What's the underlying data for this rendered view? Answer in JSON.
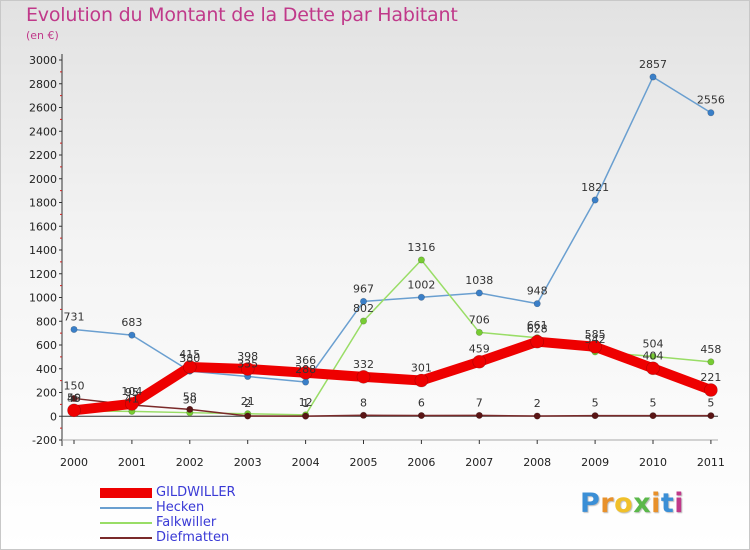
{
  "header": {
    "title": "Evolution du Montant de la Dette par Habitant",
    "subtitle": "(en €)"
  },
  "logo": {
    "letters": [
      "P",
      "r",
      "o",
      "x",
      "i",
      "t",
      "i"
    ],
    "colors": [
      "#3b8fd6",
      "#e8912b",
      "#f0c02a",
      "#5bb84a",
      "#e8912b",
      "#3b8fd6",
      "#c0398a"
    ]
  },
  "chart_data": {
    "type": "line",
    "x": [
      "2000",
      "2001",
      "2002",
      "2003",
      "2004",
      "2005",
      "2006",
      "2007",
      "2008",
      "2009",
      "2010",
      "2011"
    ],
    "ylim": [
      -200,
      3000
    ],
    "yticks": [
      "-200",
      "0",
      "200",
      "400",
      "600",
      "800",
      "1000",
      "1200",
      "1400",
      "1600",
      "1800",
      "2000",
      "2200",
      "2400",
      "2600",
      "2800",
      "3000"
    ],
    "grid": false,
    "legend_position": "bottom-left",
    "series": [
      {
        "name": "GILDWILLER",
        "color": "#ee0000",
        "width": 10,
        "values": [
          50,
          104,
          415,
          398,
          366,
          332,
          301,
          459,
          628,
          585,
          404,
          221
        ],
        "labels": [
          "50",
          "104",
          "415",
          "398",
          "366",
          "332",
          "301",
          "459",
          "628",
          "585",
          "404",
          "221"
        ]
      },
      {
        "name": "Hecken",
        "color": "#6a9fd0",
        "width": 1.5,
        "values": [
          731,
          683,
          380,
          335,
          288,
          967,
          1002,
          1038,
          948,
          1821,
          2857,
          2556
        ],
        "labels": [
          "731",
          "683",
          "380",
          "335",
          "288",
          "967",
          "1002",
          "1038",
          "948",
          "1821",
          "2857",
          "2556"
        ]
      },
      {
        "name": "Falkwiller",
        "color": "#99dd66",
        "width": 1.5,
        "values": [
          45,
          41,
          30,
          21,
          12,
          802,
          1316,
          706,
          661,
          542,
          504,
          458
        ],
        "labels": [
          "45",
          "41",
          "30",
          "21",
          "12",
          "802",
          "1316",
          "706",
          "661",
          "542",
          "504",
          "458"
        ]
      },
      {
        "name": "Diefmatten",
        "color": "#7a2a2a",
        "width": 1.5,
        "values": [
          150,
          95,
          58,
          2,
          1,
          8,
          6,
          7,
          2,
          5,
          5,
          5
        ],
        "labels": [
          "150",
          "95",
          "58",
          "2",
          "1",
          "8",
          "6",
          "7",
          "2",
          "5",
          "5",
          "5"
        ]
      }
    ]
  }
}
